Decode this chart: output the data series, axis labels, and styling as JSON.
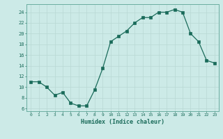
{
  "title": "",
  "x_values": [
    0,
    1,
    2,
    3,
    4,
    5,
    6,
    7,
    8,
    9,
    10,
    11,
    12,
    13,
    14,
    15,
    16,
    17,
    18,
    19,
    20,
    21,
    22,
    23
  ],
  "y_values": [
    11,
    11,
    10,
    8.5,
    9,
    7,
    6.5,
    6.5,
    9.5,
    13.5,
    18.5,
    19.5,
    20.5,
    22,
    23,
    23,
    24,
    24,
    24.5,
    24,
    20,
    18.5,
    15,
    14.5
  ],
  "line_color": "#1a6b5a",
  "marker_color": "#1a6b5a",
  "bg_color": "#cceae7",
  "grid_color": "#b8d8d4",
  "axis_label_color": "#1a6b5a",
  "tick_color": "#1a6b5a",
  "spine_color": "#6aada0",
  "xlabel": "Humidex (Indice chaleur)",
  "ylabel": "",
  "xlim": [
    -0.5,
    23.5
  ],
  "ylim": [
    5.5,
    25.5
  ],
  "yticks": [
    6,
    8,
    10,
    12,
    14,
    16,
    18,
    20,
    22,
    24
  ],
  "xticks": [
    0,
    1,
    2,
    3,
    4,
    5,
    6,
    7,
    8,
    9,
    10,
    11,
    12,
    13,
    14,
    15,
    16,
    17,
    18,
    19,
    20,
    21,
    22,
    23
  ]
}
